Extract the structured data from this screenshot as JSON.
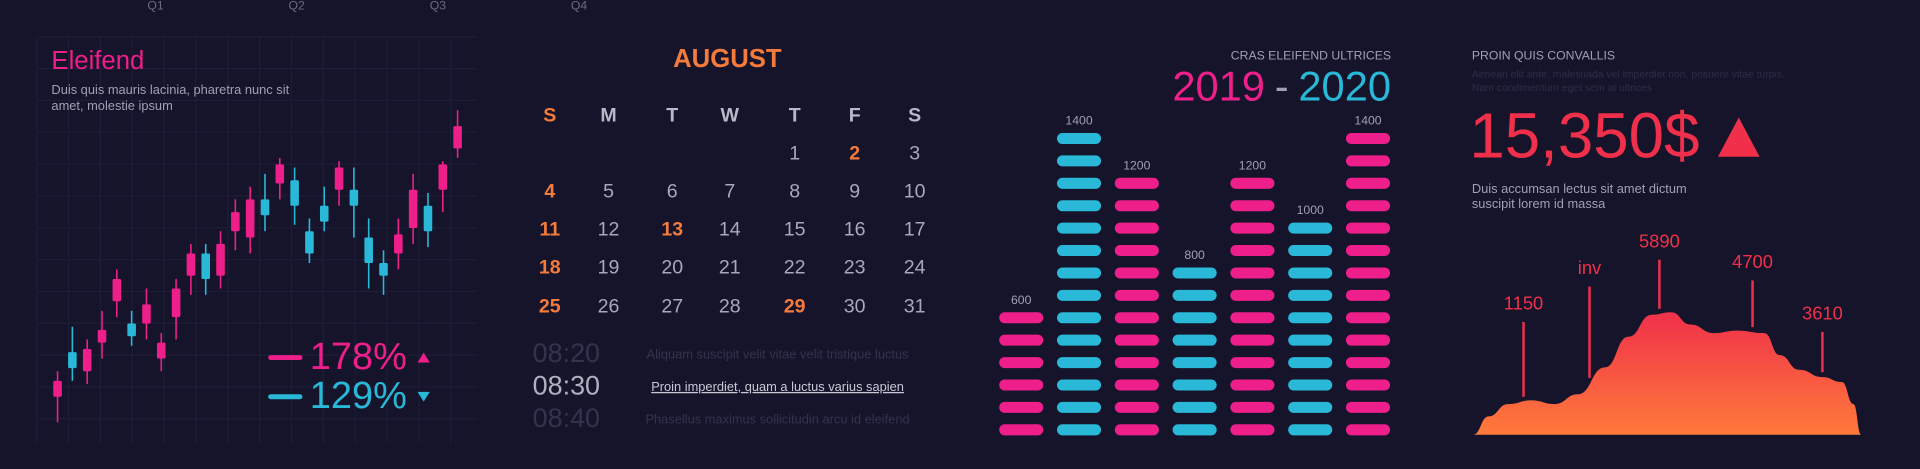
{
  "chart_data": [
    {
      "type": "candlestick",
      "title": "Eleifend",
      "subtitle": [
        "Duis quis mauris lacinia, pharetra nunc sit",
        "amet, molestie ipsum"
      ],
      "categories": [
        "Q1",
        "Q2",
        "Q3",
        "Q4"
      ],
      "candles": [
        {
          "open": 10,
          "close": 15,
          "high": 18,
          "low": 2
        },
        {
          "open": 24,
          "close": 19,
          "high": 32,
          "low": 15
        },
        {
          "open": 18,
          "close": 25,
          "high": 28,
          "low": 14
        },
        {
          "open": 27,
          "close": 31,
          "high": 37,
          "low": 22
        },
        {
          "open": 40,
          "close": 47,
          "high": 50,
          "low": 35
        },
        {
          "open": 33,
          "close": 29,
          "high": 37,
          "low": 26
        },
        {
          "open": 33,
          "close": 39,
          "high": 44,
          "low": 28
        },
        {
          "open": 22,
          "close": 27,
          "high": 30,
          "low": 18
        },
        {
          "open": 35,
          "close": 44,
          "high": 47,
          "low": 28
        },
        {
          "open": 48,
          "close": 55,
          "high": 58,
          "low": 42
        },
        {
          "open": 55,
          "close": 47,
          "high": 58,
          "low": 42
        },
        {
          "open": 48,
          "close": 58,
          "high": 62,
          "low": 44
        },
        {
          "open": 62,
          "close": 68,
          "high": 72,
          "low": 56
        },
        {
          "open": 60,
          "close": 72,
          "high": 76,
          "low": 55
        },
        {
          "open": 72,
          "close": 67,
          "high": 80,
          "low": 62
        },
        {
          "open": 77,
          "close": 83,
          "high": 85,
          "low": 72
        },
        {
          "open": 78,
          "close": 70,
          "high": 82,
          "low": 64
        },
        {
          "open": 62,
          "close": 55,
          "high": 66,
          "low": 52
        },
        {
          "open": 70,
          "close": 65,
          "high": 76,
          "low": 62
        },
        {
          "open": 75,
          "close": 82,
          "high": 84,
          "low": 70
        },
        {
          "open": 75,
          "close": 70,
          "high": 82,
          "low": 60
        },
        {
          "open": 60,
          "close": 52,
          "high": 66,
          "low": 44
        },
        {
          "open": 52,
          "close": 48,
          "high": 56,
          "low": 42
        },
        {
          "open": 55,
          "close": 61,
          "high": 66,
          "low": 50
        },
        {
          "open": 63,
          "close": 75,
          "high": 80,
          "low": 58
        },
        {
          "open": 70,
          "close": 62,
          "high": 74,
          "low": 57
        },
        {
          "open": 75,
          "close": 83,
          "high": 84,
          "low": 68
        },
        {
          "open": 88,
          "close": 95,
          "high": 100,
          "low": 85
        }
      ],
      "ylim": [
        0,
        100
      ],
      "up_color": "#ee1e8a",
      "down_color": "#29b8d8",
      "grid": true,
      "stats": [
        {
          "label": "178%",
          "color": "#ee1e8a",
          "trend": "up"
        },
        {
          "label": "129%",
          "color": "#29b8d8",
          "trend": "down"
        }
      ]
    },
    {
      "type": "pillbar",
      "title": "CRAS ELEIFEND ULTRICES",
      "title_separator": "-",
      "categories": [
        null,
        null,
        null,
        null,
        null,
        null,
        null
      ],
      "series": [
        {
          "name": "2019",
          "color": "#ee1e8a",
          "values": [
            600,
            null,
            1200,
            null,
            1200,
            null,
            1400
          ]
        },
        {
          "name": "2020",
          "color": "#29b8d8",
          "values": [
            null,
            1400,
            null,
            800,
            null,
            1000,
            null
          ]
        }
      ],
      "pill_value": 100
    },
    {
      "type": "area",
      "title": "PROIN QUIS CONVALLIS",
      "note": [
        "Aenean elit ante, malesuada vel imperdiet non, posuere vitae turpis.",
        "Nam condimentum eget sem at ultrices"
      ],
      "headline": "15,350$",
      "text": [
        "Duis accumsan lectus sit amet dictum",
        "suscipit lorem id massa"
      ],
      "x": [
        0,
        4,
        9,
        15,
        21,
        27,
        34,
        40,
        46,
        51,
        56,
        62,
        68,
        75,
        79,
        84,
        90,
        95,
        98,
        100
      ],
      "values": [
        0,
        15,
        25,
        28,
        25,
        33,
        55,
        80,
        98,
        100,
        90,
        83,
        85,
        83,
        65,
        53,
        47,
        43,
        25,
        0
      ],
      "xlim": [
        0,
        100
      ],
      "ylim": [
        0,
        100
      ],
      "annotations": [
        {
          "x": 13,
          "label": "1150"
        },
        {
          "x": 30,
          "label": "inv"
        },
        {
          "x": 48,
          "label": "5890"
        },
        {
          "x": 72,
          "label": "4700"
        },
        {
          "x": 90,
          "label": "3610"
        }
      ],
      "color_top": "#f0304a",
      "color_bottom": "#ff7a3a"
    }
  ],
  "calendar": {
    "month": "AUGUST",
    "weekdays": [
      "S",
      "M",
      "T",
      "W",
      "T",
      "F",
      "S"
    ],
    "weeks": [
      [
        null,
        null,
        null,
        null,
        1,
        2,
        3
      ],
      [
        4,
        5,
        6,
        7,
        8,
        9,
        10
      ],
      [
        11,
        12,
        13,
        14,
        15,
        16,
        17
      ],
      [
        18,
        19,
        20,
        21,
        22,
        23,
        24
      ],
      [
        25,
        26,
        27,
        28,
        29,
        30,
        31
      ]
    ],
    "highlighted": [
      2,
      4,
      11,
      13,
      18,
      25,
      29
    ],
    "highlighted_weekdays": [
      0
    ],
    "accent_color": "#f47b3c"
  },
  "schedule": [
    {
      "time": "08:20",
      "text": "Aliquam suscipit velit vitae velit tristique luctus",
      "active": false
    },
    {
      "time": "08:30",
      "text": "Proin imperdiet, quam a luctus varius sapien",
      "active": true
    },
    {
      "time": "08:40",
      "text": "Phasellus maximus sollicitudin arcu id eleifend",
      "active": false
    }
  ]
}
